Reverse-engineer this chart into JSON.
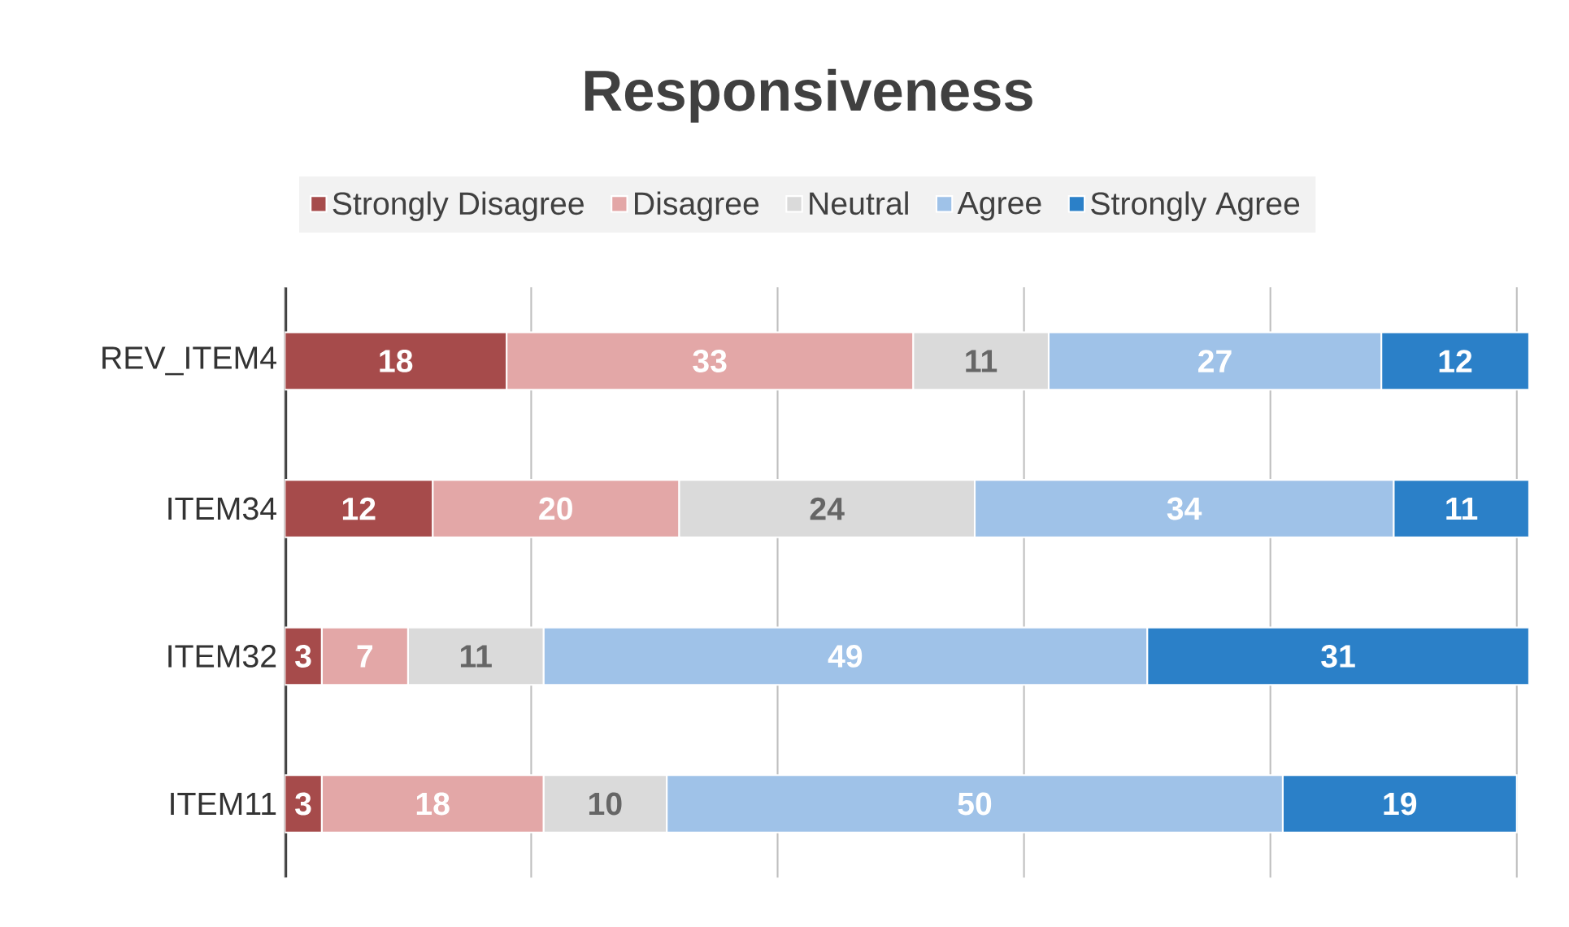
{
  "chart_data": {
    "type": "bar",
    "title": "Responsiveness",
    "orientation": "horizontal",
    "stacked": true,
    "categories": [
      "REV_ITEM4",
      "ITEM34",
      "ITEM32",
      "ITEM11"
    ],
    "series": [
      {
        "name": "Strongly Disagree",
        "color": "#a64b4b",
        "values": [
          18,
          12,
          3,
          3
        ]
      },
      {
        "name": "Disagree",
        "color": "#e3a7a7",
        "values": [
          33,
          20,
          7,
          18
        ]
      },
      {
        "name": "Neutral",
        "color": "#dadada",
        "values": [
          11,
          24,
          11,
          10
        ]
      },
      {
        "name": "Agree",
        "color": "#9fc2e8",
        "values": [
          27,
          34,
          49,
          50
        ]
      },
      {
        "name": "Strongly Agree",
        "color": "#2b80c8",
        "values": [
          12,
          11,
          31,
          19
        ]
      }
    ],
    "grid": "x",
    "legend": "top",
    "tick_labels": "y",
    "data_labels": true
  }
}
